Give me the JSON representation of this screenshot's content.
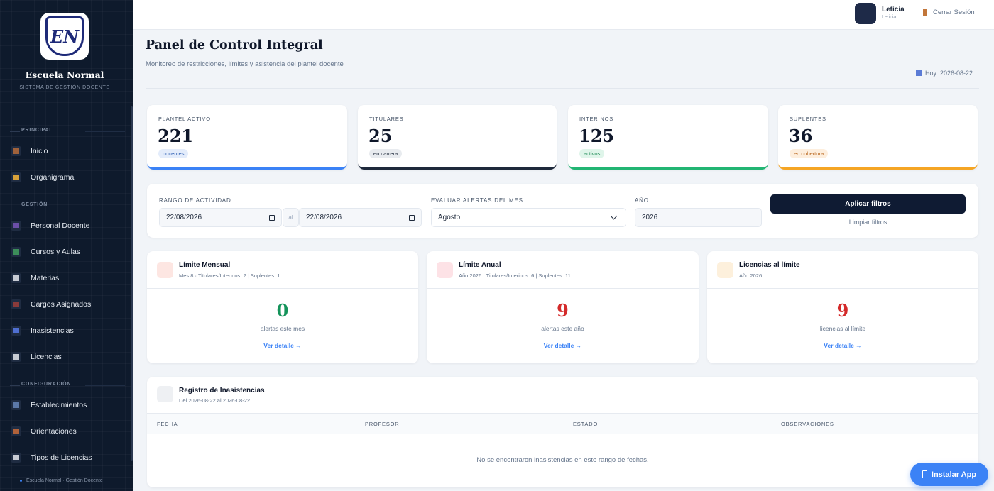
{
  "sidebar": {
    "brand": {
      "logo": "EN",
      "name": "Escuela Normal",
      "subtitle": "SISTEMA DE GESTIÓN DOCENTE"
    },
    "sections": [
      {
        "title": "PRINCIPAL",
        "items": [
          "Inicio",
          "Organigrama"
        ]
      },
      {
        "title": "GESTIÓN",
        "items": [
          "Personal Docente",
          "Cursos y Aulas",
          "Materias",
          "Cargos Asignados",
          "Inasistencias",
          "Licencias"
        ]
      },
      {
        "title": "CONFIGURACIÓN",
        "items": [
          "Establecimientos",
          "Orientaciones",
          "Tipos de Licencias"
        ]
      }
    ],
    "footer": "Escuela Normal · Gestión Docente"
  },
  "topbar": {
    "user": {
      "name": "Leticia",
      "role": "Leticia"
    },
    "logout": "Cerrar Sesión"
  },
  "header": {
    "title": "Panel de Control Integral",
    "subtitle": "Monitoreo de restricciones, límites y asistencia del plantel docente",
    "date": "Hoy: 2026-08-22"
  },
  "stats": [
    {
      "label": "PLANTEL ACTIVO",
      "value": 221,
      "badge": "docentes"
    },
    {
      "label": "TITULARES",
      "value": 25,
      "badge": "en carrera"
    },
    {
      "label": "INTERINOS",
      "value": 125,
      "badge": "activos"
    },
    {
      "label": "SUPLENTES",
      "value": 36,
      "badge": "en cobertura"
    }
  ],
  "filters": {
    "range_label": "RANGO DE ACTIVIDAD",
    "from": "22/08/2026",
    "separator": "al",
    "to": "22/08/2026",
    "month_label": "EVALUAR ALERTAS DEL MES",
    "month": "Agosto",
    "year_label": "AÑO",
    "year": "2026",
    "apply": "Aplicar filtros",
    "clear": "Limpiar filtros"
  },
  "alerts": [
    {
      "title": "Límite Mensual",
      "detail": "Mes 8 · Titulares/Interinos: 2 | Suplentes: 1",
      "value": 0,
      "caption": "alertas este mes",
      "link": "Ver detalle →"
    },
    {
      "title": "Límite Anual",
      "detail": "Año 2026 · Titulares/Interinos: 6 | Suplentes: 11",
      "value": 9,
      "caption": "alertas este año",
      "link": "Ver detalle →"
    },
    {
      "title": "Licencias al límite",
      "detail": "Año 2026",
      "value": 9,
      "caption": "licencias al límite",
      "link": "Ver detalle →"
    }
  ],
  "absences": {
    "title": "Registro de Inasistencias",
    "range": "Del 2026-08-22 al 2026-08-22",
    "columns": [
      "FECHA",
      "PROFESOR",
      "ESTADO",
      "OBSERVACIONES"
    ],
    "empty": "No se encontraron inasistencias en este rango de fechas."
  },
  "install": "Instalar App"
}
